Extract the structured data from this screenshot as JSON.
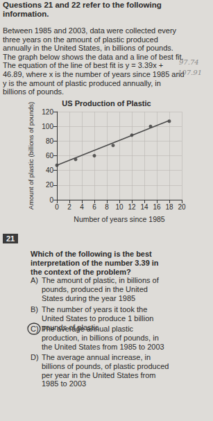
{
  "header": "Questions 21 and 22 refer to the following information.",
  "paragraph": "Between 1985 and 2003, data were collected every three years on the amount of plastic produced annually in the United States, in billions of pounds. The graph below shows the data and a line of best fit. The equation of the line of best fit is y = 3.39x + 46.89, where x is the number of years since 1985 and y is the amount of plastic produced annually, in billions of pounds.",
  "handwritten_notes": [
    "97.74",
    "107.91"
  ],
  "chart_data": {
    "type": "scatter",
    "title": "US Production of Plastic",
    "x_label": "Number of years since 1985",
    "y_label": "Amount of plastic (billions of pounds)",
    "xlim": [
      0,
      20
    ],
    "xticks": [
      0,
      2,
      4,
      6,
      8,
      10,
      12,
      14,
      16,
      18,
      20
    ],
    "ylim": [
      0,
      120
    ],
    "yticks": [
      0,
      20,
      40,
      60,
      80,
      100,
      120
    ],
    "grid": true,
    "series": [
      {
        "type": "scatter",
        "marker": "circle",
        "color": "#3a3a3a",
        "x": [
          0,
          3,
          6,
          9,
          12,
          15,
          18
        ],
        "values": [
          47,
          55,
          60,
          74,
          88,
          100,
          107
        ]
      },
      {
        "type": "line",
        "line_style": "solid",
        "color": "#4a4a4a",
        "x": [
          0,
          18
        ],
        "values": [
          47,
          108
        ]
      }
    ]
  },
  "question": {
    "number": "21",
    "text": "Which of the following is the best interpretation of the number 3.39 in the context of the problem?",
    "answer_circled": "C",
    "options": [
      {
        "letter": "A)",
        "text": "The amount of plastic, in billions of pounds, produced in the United States during the year 1985"
      },
      {
        "letter": "B)",
        "text": "The number of years it took the United States to produce 1 billion pounds of plastic"
      },
      {
        "letter": "C)",
        "text": "The average annual plastic production, in billions of pounds, in the United States from 1985 to 2003"
      },
      {
        "letter": "D)",
        "text": "The average annual increase, in billions of pounds, of plastic produced per year in the United States from 1985 to 2003"
      }
    ]
  }
}
